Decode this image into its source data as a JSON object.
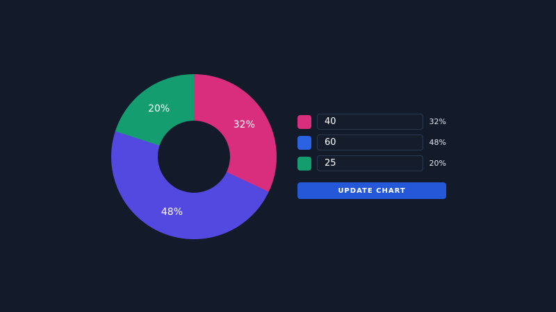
{
  "theme": {
    "background": "#131a29",
    "input_bg": "#151d2c",
    "input_border": "#2b3950",
    "text_primary": "#ffffff",
    "text_secondary": "#dfe5ef"
  },
  "chart_data": {
    "type": "pie",
    "donut": true,
    "title": "",
    "legend_position": "none",
    "slices": [
      {
        "name": "slice-1",
        "value": 40,
        "percent": 32,
        "label": "32%",
        "color": "#d92e7d"
      },
      {
        "name": "slice-2",
        "value": 60,
        "percent": 48,
        "label": "48%",
        "color": "#5349e0"
      },
      {
        "name": "slice-3",
        "value": 25,
        "percent": 20,
        "label": "20%",
        "color": "#149e6f"
      }
    ]
  },
  "controls": {
    "rows": [
      {
        "swatch_color": "#d92e7d",
        "input_value": "40",
        "percent_label": "32%"
      },
      {
        "swatch_color": "#2b62e4",
        "input_value": "60",
        "percent_label": "48%"
      },
      {
        "swatch_color": "#149e6f",
        "input_value": "25",
        "percent_label": "20%"
      }
    ],
    "update_button_label": "UPDATE CHART",
    "button_color": "#2458d8"
  }
}
